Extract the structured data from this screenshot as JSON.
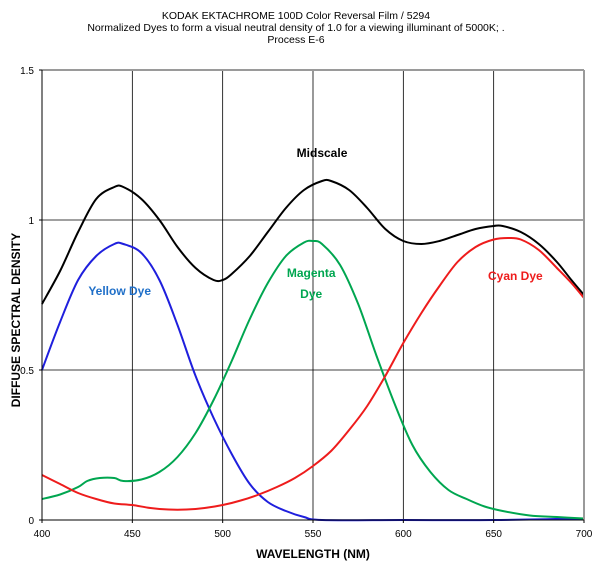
{
  "chart_data": {
    "type": "line",
    "title": "KODAK EKTACHROME 100D Color Reversal Film / 5294",
    "subtitle": "Normalized Dyes to form a visual neutral density of 1.0 for a viewing illuminant of 5000K;  .",
    "subtitle2": "Process E-6",
    "xlabel": "WAVELENGTH (NM)",
    "ylabel": "DIFFUSE SPECTRAL DENSITY",
    "xlim": [
      400,
      700
    ],
    "ylim": [
      0,
      1.5
    ],
    "x_ticks": [
      "400",
      "450",
      "500",
      "550",
      "600",
      "650",
      "700"
    ],
    "y_ticks": [
      "0",
      "0.5",
      "1",
      "1.5"
    ],
    "grid": true,
    "series": [
      {
        "name": "Midscale",
        "color": "#000000",
        "points": [
          [
            400,
            0.72
          ],
          [
            410,
            0.83
          ],
          [
            420,
            0.96
          ],
          [
            430,
            1.07
          ],
          [
            440,
            1.11
          ],
          [
            445,
            1.11
          ],
          [
            455,
            1.07
          ],
          [
            465,
            1.0
          ],
          [
            475,
            0.91
          ],
          [
            485,
            0.84
          ],
          [
            495,
            0.8
          ],
          [
            500,
            0.8
          ],
          [
            505,
            0.82
          ],
          [
            515,
            0.88
          ],
          [
            525,
            0.96
          ],
          [
            535,
            1.04
          ],
          [
            545,
            1.1
          ],
          [
            555,
            1.13
          ],
          [
            560,
            1.13
          ],
          [
            570,
            1.1
          ],
          [
            580,
            1.04
          ],
          [
            590,
            0.97
          ],
          [
            600,
            0.93
          ],
          [
            610,
            0.92
          ],
          [
            620,
            0.93
          ],
          [
            630,
            0.95
          ],
          [
            640,
            0.97
          ],
          [
            650,
            0.98
          ],
          [
            655,
            0.98
          ],
          [
            665,
            0.96
          ],
          [
            675,
            0.92
          ],
          [
            685,
            0.86
          ],
          [
            693,
            0.8
          ],
          [
            700,
            0.75
          ]
        ]
      },
      {
        "name": "Yellow Dye",
        "color": "#1f1fdd",
        "points": [
          [
            400,
            0.5
          ],
          [
            410,
            0.66
          ],
          [
            420,
            0.8
          ],
          [
            430,
            0.88
          ],
          [
            440,
            0.92
          ],
          [
            445,
            0.92
          ],
          [
            455,
            0.89
          ],
          [
            465,
            0.8
          ],
          [
            475,
            0.65
          ],
          [
            485,
            0.48
          ],
          [
            495,
            0.34
          ],
          [
            505,
            0.22
          ],
          [
            515,
            0.12
          ],
          [
            525,
            0.06
          ],
          [
            535,
            0.03
          ],
          [
            545,
            0.01
          ],
          [
            555,
            0.0
          ],
          [
            600,
            0.0
          ],
          [
            650,
            0.0
          ],
          [
            700,
            0.005
          ]
        ]
      },
      {
        "name": "Magenta Dye",
        "color": "#00a650",
        "points": [
          [
            400,
            0.07
          ],
          [
            410,
            0.085
          ],
          [
            420,
            0.11
          ],
          [
            425,
            0.13
          ],
          [
            432,
            0.14
          ],
          [
            440,
            0.14
          ],
          [
            445,
            0.13
          ],
          [
            455,
            0.135
          ],
          [
            465,
            0.16
          ],
          [
            475,
            0.21
          ],
          [
            485,
            0.29
          ],
          [
            495,
            0.4
          ],
          [
            505,
            0.53
          ],
          [
            515,
            0.67
          ],
          [
            525,
            0.79
          ],
          [
            535,
            0.88
          ],
          [
            545,
            0.925
          ],
          [
            550,
            0.93
          ],
          [
            555,
            0.92
          ],
          [
            565,
            0.85
          ],
          [
            575,
            0.72
          ],
          [
            585,
            0.55
          ],
          [
            595,
            0.39
          ],
          [
            605,
            0.25
          ],
          [
            615,
            0.16
          ],
          [
            625,
            0.1
          ],
          [
            635,
            0.07
          ],
          [
            645,
            0.045
          ],
          [
            655,
            0.03
          ],
          [
            670,
            0.015
          ],
          [
            685,
            0.01
          ],
          [
            700,
            0.005
          ]
        ]
      },
      {
        "name": "Cyan Dye",
        "color": "#ee1c1c",
        "points": [
          [
            400,
            0.15
          ],
          [
            410,
            0.12
          ],
          [
            420,
            0.09
          ],
          [
            430,
            0.07
          ],
          [
            440,
            0.055
          ],
          [
            450,
            0.05
          ],
          [
            460,
            0.04
          ],
          [
            470,
            0.035
          ],
          [
            480,
            0.035
          ],
          [
            490,
            0.04
          ],
          [
            500,
            0.05
          ],
          [
            510,
            0.065
          ],
          [
            520,
            0.085
          ],
          [
            530,
            0.11
          ],
          [
            540,
            0.14
          ],
          [
            550,
            0.18
          ],
          [
            560,
            0.23
          ],
          [
            570,
            0.3
          ],
          [
            580,
            0.38
          ],
          [
            590,
            0.48
          ],
          [
            600,
            0.59
          ],
          [
            610,
            0.69
          ],
          [
            620,
            0.78
          ],
          [
            630,
            0.86
          ],
          [
            640,
            0.91
          ],
          [
            650,
            0.935
          ],
          [
            658,
            0.94
          ],
          [
            665,
            0.935
          ],
          [
            675,
            0.9
          ],
          [
            685,
            0.84
          ],
          [
            693,
            0.79
          ],
          [
            700,
            0.74
          ]
        ]
      }
    ],
    "annotations": [
      {
        "text": "Midscale",
        "x": 555,
        "y": 1.21,
        "color": "#000000"
      },
      {
        "text": "Yellow Dye",
        "x": 443,
        "y": 0.75,
        "color": "#1f6fc8"
      },
      {
        "text": "Magenta",
        "x": 549,
        "y": 0.81,
        "color": "#00a650"
      },
      {
        "text": "Dye",
        "x": 549,
        "y": 0.74,
        "color": "#00a650"
      },
      {
        "text": "Cyan Dye",
        "x": 662,
        "y": 0.8,
        "color": "#ee1c1c"
      }
    ]
  }
}
